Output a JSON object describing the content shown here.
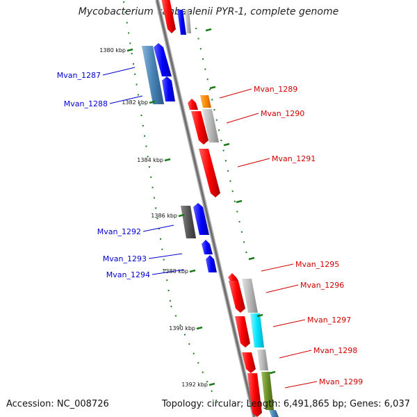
{
  "title": "Mycobacterium vanbaalenii PYR-1, complete genome",
  "footer": {
    "accession": "Accession: NC_008726",
    "stats": "Topology: circular; Length: 6,491,865 bp; Genes: 6,037"
  },
  "ticks": [
    "1380 kbp",
    "1382 kbp",
    "1384 kbp",
    "1386 kbp",
    "1388 kbp",
    "1390 kbp",
    "1392 kbp"
  ],
  "genes_reverse": [
    "Mvan_1287",
    "Mvan_1288",
    "Mvan_1292",
    "Mvan_1293",
    "Mvan_1294"
  ],
  "genes_forward": [
    "Mvan_1289",
    "Mvan_1290",
    "Mvan_1291",
    "Mvan_1295",
    "Mvan_1296",
    "Mvan_1297",
    "Mvan_1298",
    "Mvan_1299"
  ],
  "colors": {
    "cds_red": "#ff0000",
    "cds_blue": "#0000ff",
    "backbone": "#808080",
    "tick": "#1a7a1a",
    "label_blue": "#0000d0",
    "label_red": "#d00000",
    "orange": "#ff8c00",
    "cyan": "#00e5ff",
    "olive": "#6b8e23",
    "steel": "#4682b4",
    "gray_light": "#b8b8b8",
    "gray_dark": "#555555"
  }
}
